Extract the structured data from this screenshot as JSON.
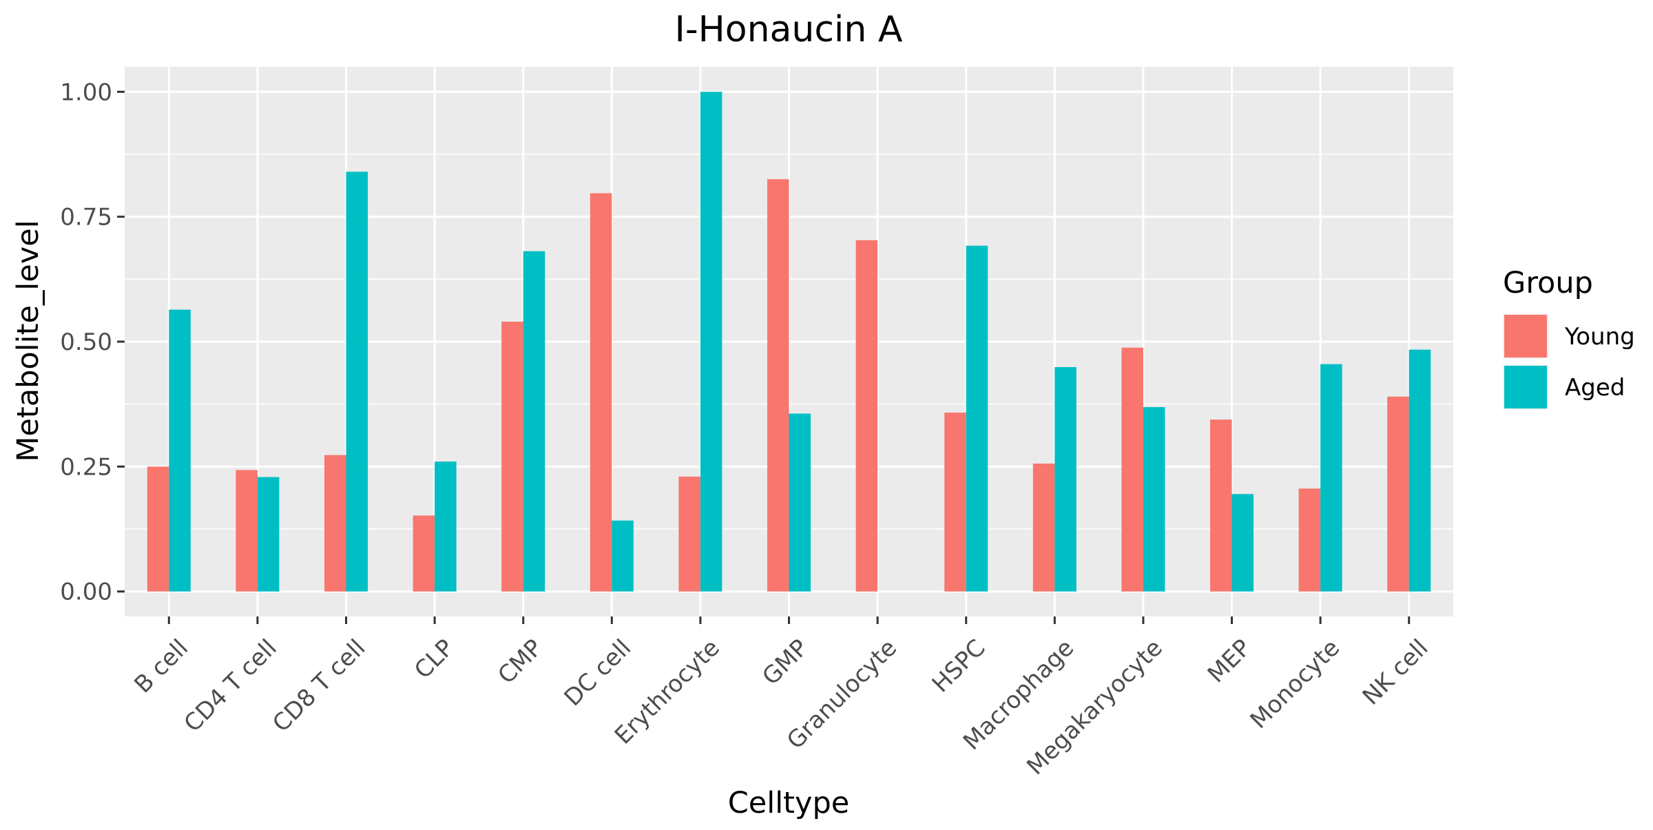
{
  "chart_data": {
    "type": "bar",
    "title": "I-Honaucin A",
    "xlabel": "Celltype",
    "ylabel": "Metabolite_level",
    "categories": [
      "B cell",
      "CD4 T cell",
      "CD8 T cell",
      "CLP",
      "CMP",
      "DC cell",
      "Erythrocyte",
      "GMP",
      "Granulocyte",
      "HSPC",
      "Macrophage",
      "Megakaryocyte",
      "MEP",
      "Monocyte",
      "NK cell"
    ],
    "series": [
      {
        "name": "Young",
        "color": "#F8766D",
        "values": [
          0.25,
          0.243,
          0.273,
          0.152,
          0.54,
          0.797,
          0.23,
          0.825,
          0.703,
          0.358,
          0.256,
          0.488,
          0.344,
          0.206,
          0.39
        ]
      },
      {
        "name": "Aged",
        "color": "#00BFC4",
        "values": [
          0.564,
          0.229,
          0.84,
          0.26,
          0.681,
          0.142,
          1.0,
          0.356,
          0.0,
          0.692,
          0.449,
          0.369,
          0.195,
          0.455,
          0.484
        ]
      }
    ],
    "ylim": [
      -0.05,
      1.05
    ],
    "yticks": [
      0.0,
      0.25,
      0.5,
      0.75,
      1.0
    ],
    "ytick_labels": [
      "0.00",
      "0.25",
      "0.50",
      "0.75",
      "1.00"
    ],
    "legend": {
      "title": "Group",
      "position": "right"
    },
    "grid": true
  }
}
